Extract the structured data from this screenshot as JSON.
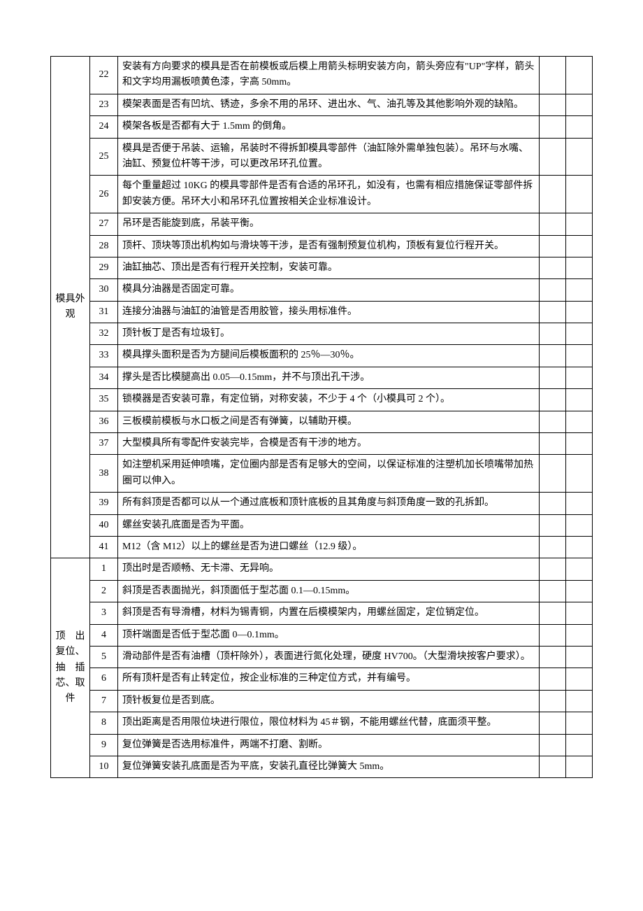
{
  "sections": [
    {
      "category": "模具外观",
      "rows": [
        {
          "num": "22",
          "desc": "安装有方向要求的模具是否在前模板或后模上用箭头标明安装方向，箭头旁应有\"UP\"字样，箭头和文字均用漏板喷黄色漆，字高 50mm。"
        },
        {
          "num": "23",
          "desc": "模架表面是否有凹坑、锈迹，多余不用的吊环、进出水、气、油孔等及其他影响外观的缺陷。"
        },
        {
          "num": "24",
          "desc": "模架各板是否都有大于 1.5mm 的倒角。"
        },
        {
          "num": "25",
          "desc": "模具是否便于吊装、运输，吊装时不得拆卸模具零部件（油缸除外需单独包装）。吊环与水嘴、油缸、预复位杆等干涉，可以更改吊环孔位置。"
        },
        {
          "num": "26",
          "desc": "每个重量超过 10KG 的模具零部件是否有合适的吊环孔，如没有，也需有相应措施保证零部件拆卸安装方便。吊环大小和吊环孔位置按相关企业标准设计。"
        },
        {
          "num": "27",
          "desc": "吊环是否能旋到底，吊装平衡。"
        },
        {
          "num": "28",
          "desc": "顶杆、顶块等顶出机构如与滑块等干涉，是否有强制预复位机构，顶板有复位行程开关。"
        },
        {
          "num": "29",
          "desc": "油缸抽芯、顶出是否有行程开关控制，安装可靠。"
        },
        {
          "num": "30",
          "desc": "模具分油器是否固定可靠。"
        },
        {
          "num": "31",
          "desc": "连接分油器与油缸的油管是否用胶管，接头用标准件。"
        },
        {
          "num": "32",
          "desc": "顶针板丁是否有垃圾钉。"
        },
        {
          "num": "33",
          "desc": "模具撑头面积是否为方腿间后模板面积的 25％—30％。"
        },
        {
          "num": "34",
          "desc": "撑头是否比模腿高出 0.05—0.15mm，并不与顶出孔干涉。"
        },
        {
          "num": "35",
          "desc": "锁模器是否安装可靠，有定位销，对称安装，不少于 4 个（小模具可 2 个）。"
        },
        {
          "num": "36",
          "desc": "三板模前模板与水口板之间是否有弹簧，以辅助开模。"
        },
        {
          "num": "37",
          "desc": "大型模具所有零配件安装完毕，合模是否有干涉的地方。"
        },
        {
          "num": "38",
          "desc": "如注塑机采用延伸喷嘴，定位圈内部是否有足够大的空间，以保证标准的注塑机加长喷嘴带加热圈可以伸入。"
        },
        {
          "num": "39",
          "desc": "所有斜顶是否都可以从一个通过底板和顶针底板的且其角度与斜顶角度一致的孔拆卸。"
        },
        {
          "num": "40",
          "desc": "螺丝安装孔底面是否为平面。"
        },
        {
          "num": "41",
          "desc": "M12（含 M12）以上的螺丝是否为进口螺丝（12.9 级）。"
        }
      ]
    },
    {
      "category": "顶　出复位、抽　插芯、取件",
      "rows": [
        {
          "num": "1",
          "desc": "顶出时是否顺畅、无卡滞、无异响。"
        },
        {
          "num": "2",
          "desc": "斜顶是否表面抛光，斜顶面低于型芯面 0.1—0.15mm。"
        },
        {
          "num": "3",
          "desc": "斜顶是否有导滑槽，材料为锡青铜，内置在后模模架内，用螺丝固定，定位销定位。"
        },
        {
          "num": "4",
          "desc": "顶杆端面是否低于型芯面 0—0.1mm。"
        },
        {
          "num": "5",
          "desc": "滑动部件是否有油槽（顶杆除外），表面进行氮化处理，硬度 HV700。（大型滑块按客户要求）。"
        },
        {
          "num": "6",
          "desc": "所有顶杆是否有止转定位，按企业标准的三种定位方式，并有编号。"
        },
        {
          "num": "7",
          "desc": "顶针板复位是否到底。"
        },
        {
          "num": "8",
          "desc": "顶出距离是否用限位块进行限位，限位材料为 45＃钢，不能用螺丝代替，底面须平整。"
        },
        {
          "num": "9",
          "desc": "复位弹簧是否选用标准件，两端不打磨、割断。"
        },
        {
          "num": "10",
          "desc": "复位弹簧安装孔底面是否为平底，安装孔直径比弹簧大 5mm。"
        }
      ]
    }
  ]
}
